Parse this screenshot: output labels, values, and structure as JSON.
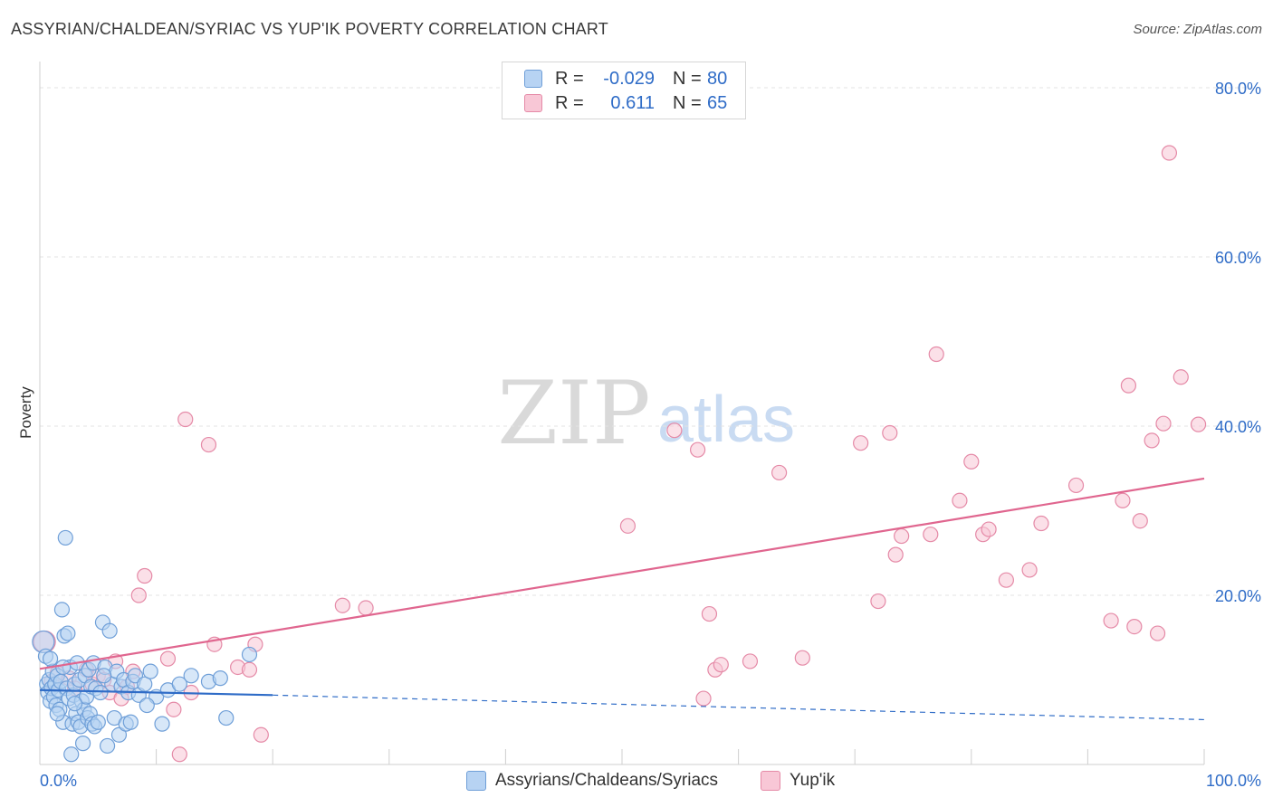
{
  "title": "ASSYRIAN/CHALDEAN/SYRIAC VS YUP'IK POVERTY CORRELATION CHART",
  "source": "Source: ZipAtlas.com",
  "watermark": {
    "zip": "ZIP",
    "atlas": "atlas"
  },
  "legend": {
    "r_label": "R =",
    "n_label": "N =",
    "series1": {
      "r": "-0.029",
      "n": "80"
    },
    "series2": {
      "r": "0.611",
      "n": "65"
    }
  },
  "bottom_legend": {
    "series1": "Assyrians/Chaldeans/Syriacs",
    "series2": "Yup'ik"
  },
  "chart_data": {
    "type": "scatter",
    "title": "ASSYRIAN/CHALDEAN/SYRIAC VS YUP'IK POVERTY CORRELATION CHART",
    "xlabel": "",
    "ylabel": "Poverty",
    "xlim": [
      0,
      100
    ],
    "ylim": [
      0,
      80
    ],
    "x_tick_labels": [
      "0.0%",
      "100.0%"
    ],
    "y_ticks": [
      20,
      40,
      60,
      80
    ],
    "y_tick_labels": [
      "20.0%",
      "40.0%",
      "60.0%",
      "80.0%"
    ],
    "grid": true,
    "colors": {
      "series1": "#6f9fd8",
      "series1_fill": "#b7d3f3",
      "series1_line": "#2f6cc7",
      "series2": "#e58aa7",
      "series2_fill": "#f8c7d6",
      "series2_line": "#e0668f",
      "axis_label": "#2f6cc7",
      "grid": "#e3e3e3"
    },
    "series": [
      {
        "name": "Assyrians/Chaldeans/Syriacs",
        "r": -0.029,
        "n": 80,
        "trend": {
          "x": [
            0,
            20
          ],
          "y": [
            8.8,
            8.2
          ],
          "dashed_to": [
            100,
            5.3
          ]
        },
        "points": [
          [
            0.3,
            14.5
          ],
          [
            0.5,
            12.8
          ],
          [
            0.6,
            9.5
          ],
          [
            0.7,
            8.5
          ],
          [
            0.8,
            10.0
          ],
          [
            0.9,
            7.5
          ],
          [
            1.0,
            9.0
          ],
          [
            1.1,
            11.0
          ],
          [
            1.2,
            8.0
          ],
          [
            1.3,
            9.5
          ],
          [
            1.4,
            7.0
          ],
          [
            1.5,
            10.5
          ],
          [
            1.6,
            8.8
          ],
          [
            1.7,
            6.5
          ],
          [
            1.8,
            9.8
          ],
          [
            1.9,
            18.3
          ],
          [
            2.0,
            5.0
          ],
          [
            2.1,
            15.2
          ],
          [
            2.2,
            26.8
          ],
          [
            2.3,
            9.0
          ],
          [
            2.4,
            15.5
          ],
          [
            2.5,
            7.8
          ],
          [
            2.6,
            11.5
          ],
          [
            2.7,
            1.2
          ],
          [
            2.8,
            4.8
          ],
          [
            2.9,
            8.2
          ],
          [
            3.0,
            9.5
          ],
          [
            3.1,
            6.0
          ],
          [
            3.2,
            12.0
          ],
          [
            3.3,
            5.0
          ],
          [
            3.4,
            10.0
          ],
          [
            3.5,
            4.5
          ],
          [
            3.6,
            7.5
          ],
          [
            3.7,
            2.5
          ],
          [
            3.8,
            6.5
          ],
          [
            3.9,
            10.5
          ],
          [
            4.0,
            8.0
          ],
          [
            4.1,
            5.5
          ],
          [
            4.2,
            11.2
          ],
          [
            4.3,
            6.0
          ],
          [
            4.4,
            9.2
          ],
          [
            4.5,
            4.8
          ],
          [
            4.6,
            12.0
          ],
          [
            4.7,
            4.5
          ],
          [
            4.8,
            9.0
          ],
          [
            5.0,
            5.0
          ],
          [
            5.2,
            8.5
          ],
          [
            5.4,
            16.8
          ],
          [
            5.6,
            11.5
          ],
          [
            5.8,
            2.2
          ],
          [
            6.0,
            15.8
          ],
          [
            6.2,
            9.5
          ],
          [
            6.4,
            5.5
          ],
          [
            6.6,
            11.0
          ],
          [
            6.8,
            3.5
          ],
          [
            7.0,
            9.2
          ],
          [
            7.2,
            10.0
          ],
          [
            7.4,
            4.8
          ],
          [
            7.6,
            8.5
          ],
          [
            7.8,
            5.0
          ],
          [
            8.0,
            9.8
          ],
          [
            8.2,
            10.5
          ],
          [
            8.5,
            8.2
          ],
          [
            9.0,
            9.5
          ],
          [
            9.5,
            11.0
          ],
          [
            10.0,
            8.0
          ],
          [
            11.0,
            8.8
          ],
          [
            12.0,
            9.5
          ],
          [
            13.0,
            10.5
          ],
          [
            14.5,
            9.8
          ],
          [
            15.5,
            10.2
          ],
          [
            16.0,
            5.5
          ],
          [
            18.0,
            13.0
          ],
          [
            9.2,
            7.0
          ],
          [
            10.5,
            4.8
          ],
          [
            3.0,
            7.2
          ],
          [
            2.0,
            11.5
          ],
          [
            1.5,
            6.0
          ],
          [
            0.9,
            12.5
          ],
          [
            5.5,
            10.5
          ]
        ]
      },
      {
        "name": "Yup'ik",
        "r": 0.611,
        "n": 65,
        "trend": {
          "x": [
            0,
            100
          ],
          "y": [
            11.3,
            33.8
          ]
        },
        "points": [
          [
            0.4,
            14.5
          ],
          [
            1.0,
            9.8
          ],
          [
            1.5,
            10.8
          ],
          [
            2.5,
            10.2
          ],
          [
            3.0,
            9.0
          ],
          [
            4.0,
            11.2
          ],
          [
            4.5,
            9.5
          ],
          [
            5.0,
            10.5
          ],
          [
            5.5,
            10.0
          ],
          [
            6.0,
            8.5
          ],
          [
            6.5,
            12.2
          ],
          [
            7.0,
            7.8
          ],
          [
            7.5,
            9.2
          ],
          [
            8.0,
            11.0
          ],
          [
            8.5,
            20.0
          ],
          [
            9.0,
            22.3
          ],
          [
            11.0,
            12.5
          ],
          [
            11.5,
            6.5
          ],
          [
            12.0,
            1.2
          ],
          [
            12.5,
            40.8
          ],
          [
            13.0,
            8.5
          ],
          [
            14.5,
            37.8
          ],
          [
            15.0,
            14.2
          ],
          [
            17.0,
            11.5
          ],
          [
            18.0,
            11.2
          ],
          [
            18.5,
            14.2
          ],
          [
            19.0,
            3.5
          ],
          [
            26.0,
            18.8
          ],
          [
            28.0,
            18.5
          ],
          [
            50.5,
            28.2
          ],
          [
            54.5,
            39.5
          ],
          [
            56.5,
            37.2
          ],
          [
            57.0,
            7.8
          ],
          [
            57.5,
            17.8
          ],
          [
            58.0,
            11.2
          ],
          [
            58.5,
            11.8
          ],
          [
            61.0,
            12.2
          ],
          [
            63.5,
            34.5
          ],
          [
            65.5,
            12.6
          ],
          [
            70.5,
            38.0
          ],
          [
            72.0,
            19.3
          ],
          [
            73.0,
            39.2
          ],
          [
            73.5,
            24.8
          ],
          [
            74.0,
            27.0
          ],
          [
            76.5,
            27.2
          ],
          [
            77.0,
            48.5
          ],
          [
            79.0,
            31.2
          ],
          [
            80.0,
            35.8
          ],
          [
            81.0,
            27.2
          ],
          [
            81.5,
            27.8
          ],
          [
            83.0,
            21.8
          ],
          [
            85.0,
            23.0
          ],
          [
            86.0,
            28.5
          ],
          [
            89.0,
            33.0
          ],
          [
            92.0,
            17.0
          ],
          [
            93.0,
            31.2
          ],
          [
            93.5,
            44.8
          ],
          [
            94.0,
            16.3
          ],
          [
            94.5,
            28.8
          ],
          [
            95.5,
            38.3
          ],
          [
            96.0,
            15.5
          ],
          [
            96.5,
            40.3
          ],
          [
            97.0,
            72.3
          ],
          [
            98.0,
            45.8
          ],
          [
            99.5,
            40.2
          ]
        ]
      }
    ]
  }
}
